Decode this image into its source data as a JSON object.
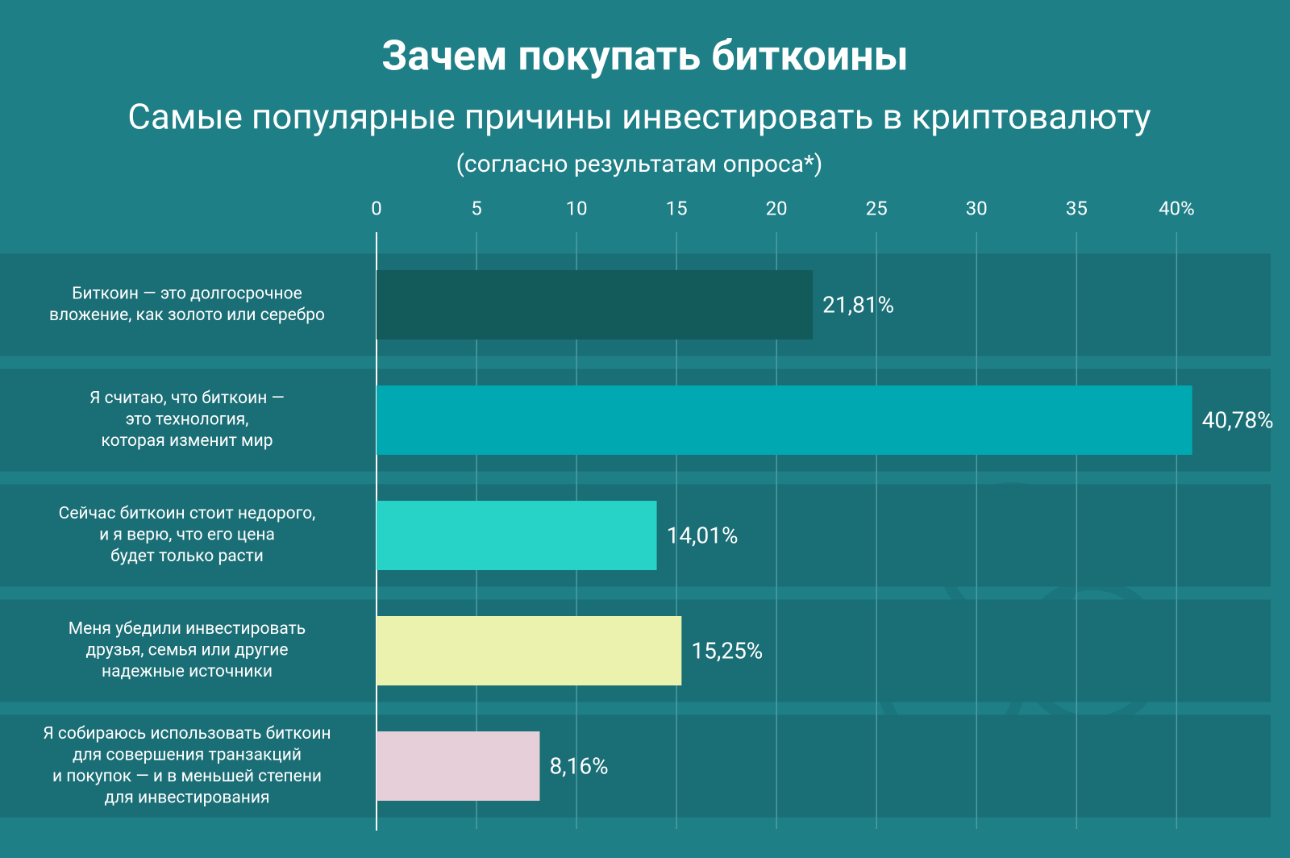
{
  "chart_data": {
    "type": "bar",
    "orientation": "horizontal",
    "title": "Зачем покупать биткоины",
    "subtitle": "Самые популярные причины инвестировать в криптовалюту",
    "note": "(согласно результатам опроса*)",
    "categories": [
      [
        "Биткоин — это долгосрочное",
        "вложение, как золото или серебро"
      ],
      [
        "Я считаю, что биткоин —",
        "это технология,",
        "которая изменит мир"
      ],
      [
        "Сейчас биткоин стоит недорого,",
        "и я верю, что его цена",
        "будет только расти"
      ],
      [
        "Меня убедили инвестировать",
        "друзья, семья или другие",
        "надежные источники"
      ],
      [
        "Я собираюсь использовать биткоин",
        "для совершения транзакций",
        "и покупок — и в меньшей степени",
        "для инвестирования"
      ]
    ],
    "values": [
      21.81,
      40.78,
      14.01,
      15.25,
      8.16
    ],
    "value_labels": [
      "21,81%",
      "40,78%",
      "14,01%",
      "15,25%",
      "8,16%"
    ],
    "colors": [
      "#135a5b",
      "#00a8b1",
      "#27d3c6",
      "#eaf2ad",
      "#e6cfd9"
    ],
    "xlim": [
      0,
      42
    ],
    "xticks": [
      0,
      5,
      10,
      15,
      20,
      25,
      30,
      35,
      {
        "value": 40,
        "label": "40%"
      }
    ],
    "grid": true
  }
}
